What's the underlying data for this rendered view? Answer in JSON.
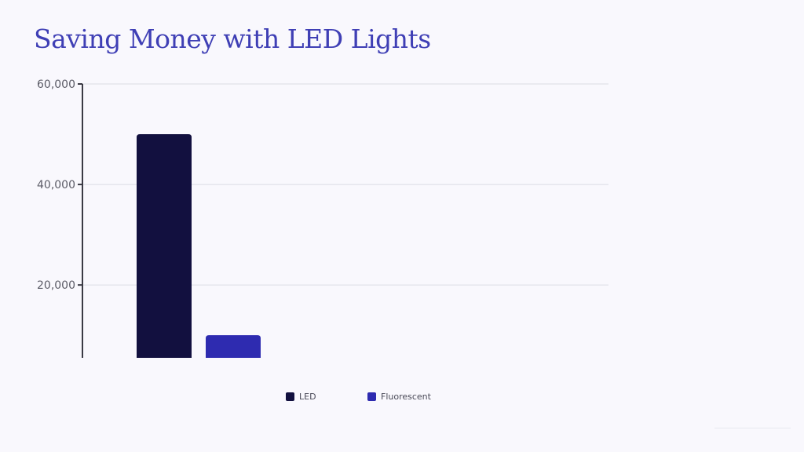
{
  "slide": {
    "title": "Saving Money with LED Lights"
  },
  "chart_data": {
    "type": "bar",
    "categories": [
      ""
    ],
    "series": [
      {
        "name": "LED",
        "values": [
          50000
        ],
        "color": "#12103f"
      },
      {
        "name": "Fluorescent",
        "values": [
          10000
        ],
        "color": "#2e2bb0"
      }
    ],
    "yticks": [
      20000,
      40000,
      60000
    ],
    "ytick_labels": [
      "20,000",
      "40,000",
      "60,000"
    ],
    "ylim": [
      5500,
      60000
    ],
    "grid": true,
    "legend": "bottom-center",
    "xlabel": "",
    "ylabel": ""
  }
}
